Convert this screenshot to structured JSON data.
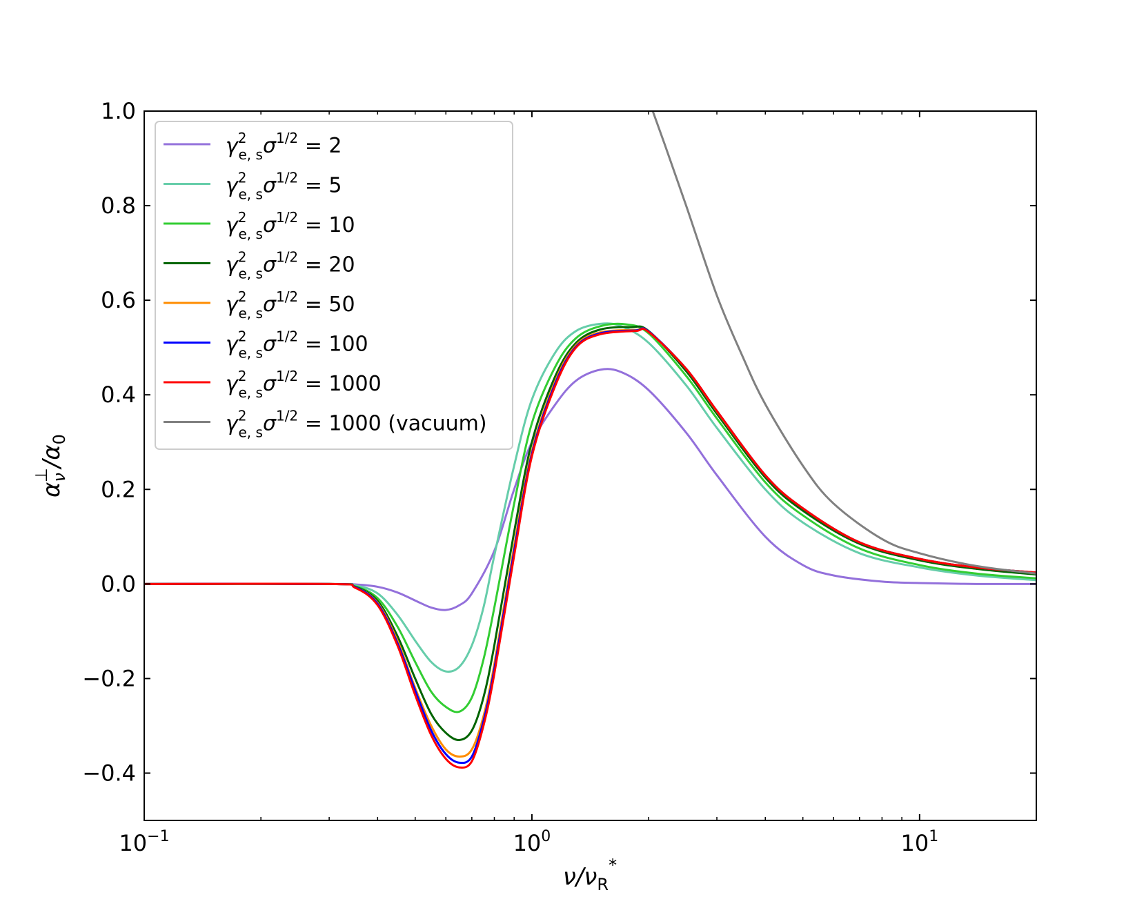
{
  "chart_data": {
    "type": "line",
    "title": "",
    "xlabel": {
      "base": "ν/ν",
      "sub": "R",
      "sup": "*"
    },
    "ylabel": {
      "base": "α",
      "sub": "ν",
      "sup": "⊥",
      "rest": "/α",
      "sub2": "0"
    },
    "xscale": "log",
    "xlim": [
      0.1,
      20
    ],
    "ylim": [
      -0.5,
      1.0
    ],
    "xticks": [
      {
        "value": 0.1,
        "base": "10",
        "exp": "−1"
      },
      {
        "value": 1,
        "base": "10",
        "exp": "0"
      },
      {
        "value": 10,
        "base": "10",
        "exp": "1"
      }
    ],
    "yticks": [
      {
        "value": -0.4,
        "label": "−0.4"
      },
      {
        "value": -0.2,
        "label": "−0.2"
      },
      {
        "value": 0.0,
        "label": "0.0"
      },
      {
        "value": 0.2,
        "label": "0.2"
      },
      {
        "value": 0.4,
        "label": "0.4"
      },
      {
        "value": 0.6,
        "label": "0.6"
      },
      {
        "value": 0.8,
        "label": "0.8"
      },
      {
        "value": 1.0,
        "label": "1.0"
      }
    ],
    "legend_position": "top-left",
    "legend_prefix": "γ",
    "legend_sub": "e, s",
    "legend_sup": "2",
    "legend_sigma": "σ",
    "legend_sigma_sup": "1/2",
    "legend_eq": " = ",
    "grid": false,
    "series": [
      {
        "name": "2",
        "color": "#9370DB",
        "x": [
          0.1,
          0.3,
          0.35,
          0.4,
          0.45,
          0.5,
          0.55,
          0.6,
          0.65,
          0.7,
          0.8,
          0.9,
          1.0,
          1.15,
          1.3,
          1.5,
          1.7,
          2.0,
          2.5,
          3.0,
          4.0,
          5.0,
          6.0,
          8.0,
          10.0,
          14.0,
          20.0
        ],
        "y": [
          0,
          0,
          -0.001,
          -0.006,
          -0.018,
          -0.035,
          -0.05,
          -0.055,
          -0.045,
          -0.02,
          0.07,
          0.2,
          0.3,
          0.38,
          0.43,
          0.453,
          0.448,
          0.41,
          0.32,
          0.23,
          0.1,
          0.04,
          0.018,
          0.005,
          0.002,
          0.0,
          0.0
        ]
      },
      {
        "name": "5",
        "color": "#66CDAA",
        "x": [
          0.1,
          0.3,
          0.35,
          0.4,
          0.45,
          0.5,
          0.55,
          0.6,
          0.65,
          0.7,
          0.75,
          0.8,
          0.9,
          1.0,
          1.15,
          1.3,
          1.5,
          1.7,
          2.0,
          2.5,
          3.0,
          4.0,
          5.0,
          7.0,
          10.0,
          14.0,
          20.0
        ],
        "y": [
          0,
          0,
          -0.003,
          -0.02,
          -0.065,
          -0.12,
          -0.165,
          -0.185,
          -0.175,
          -0.13,
          -0.05,
          0.06,
          0.25,
          0.39,
          0.49,
          0.535,
          0.55,
          0.545,
          0.51,
          0.42,
          0.33,
          0.2,
          0.13,
          0.065,
          0.035,
          0.018,
          0.008
        ]
      },
      {
        "name": "10",
        "color": "#32CD32",
        "x": [
          0.1,
          0.3,
          0.35,
          0.4,
          0.45,
          0.5,
          0.55,
          0.6,
          0.65,
          0.7,
          0.75,
          0.8,
          0.9,
          1.0,
          1.15,
          1.3,
          1.5,
          1.75,
          2.0,
          2.5,
          3.0,
          4.0,
          5.0,
          7.0,
          10.0,
          14.0,
          20.0
        ],
        "y": [
          0,
          0,
          -0.005,
          -0.03,
          -0.09,
          -0.165,
          -0.228,
          -0.26,
          -0.27,
          -0.24,
          -0.16,
          -0.05,
          0.17,
          0.34,
          0.46,
          0.52,
          0.545,
          0.549,
          0.53,
          0.44,
          0.35,
          0.215,
          0.145,
          0.075,
          0.04,
          0.022,
          0.012
        ]
      },
      {
        "name": "20",
        "color": "#006400",
        "x": [
          0.1,
          0.3,
          0.35,
          0.4,
          0.45,
          0.5,
          0.55,
          0.6,
          0.65,
          0.7,
          0.75,
          0.8,
          0.9,
          1.0,
          1.15,
          1.3,
          1.5,
          1.8,
          2.0,
          2.5,
          3.0,
          4.0,
          5.0,
          7.0,
          10.0,
          14.0,
          20.0
        ],
        "y": [
          0,
          0,
          -0.006,
          -0.036,
          -0.11,
          -0.2,
          -0.275,
          -0.315,
          -0.33,
          -0.31,
          -0.24,
          -0.13,
          0.11,
          0.3,
          0.44,
          0.51,
          0.538,
          0.543,
          0.535,
          0.45,
          0.36,
          0.225,
          0.155,
          0.085,
          0.05,
          0.032,
          0.02
        ]
      },
      {
        "name": "50",
        "color": "#FF8C00",
        "x": [
          0.1,
          0.3,
          0.35,
          0.4,
          0.45,
          0.5,
          0.55,
          0.6,
          0.65,
          0.7,
          0.75,
          0.8,
          0.9,
          1.0,
          1.15,
          1.3,
          1.5,
          1.85,
          2.0,
          2.5,
          3.0,
          4.0,
          5.0,
          7.0,
          10.0,
          14.0,
          20.0
        ],
        "y": [
          0,
          0,
          -0.007,
          -0.04,
          -0.12,
          -0.22,
          -0.3,
          -0.35,
          -0.365,
          -0.35,
          -0.28,
          -0.17,
          0.08,
          0.28,
          0.43,
          0.505,
          0.532,
          0.537,
          0.534,
          0.455,
          0.365,
          0.23,
          0.16,
          0.088,
          0.053,
          0.035,
          0.024
        ]
      },
      {
        "name": "100",
        "color": "#0000FF",
        "x": [
          0.1,
          0.3,
          0.35,
          0.4,
          0.45,
          0.5,
          0.55,
          0.6,
          0.65,
          0.7,
          0.75,
          0.8,
          0.9,
          1.0,
          1.15,
          1.3,
          1.5,
          1.85,
          2.0,
          2.5,
          3.0,
          4.0,
          5.0,
          7.0,
          10.0,
          14.0,
          20.0
        ],
        "y": [
          0,
          0,
          -0.007,
          -0.042,
          -0.125,
          -0.225,
          -0.31,
          -0.36,
          -0.378,
          -0.365,
          -0.29,
          -0.18,
          0.07,
          0.275,
          0.425,
          0.502,
          0.53,
          0.536,
          0.534,
          0.455,
          0.366,
          0.23,
          0.16,
          0.088,
          0.053,
          0.035,
          0.024
        ]
      },
      {
        "name": "1000",
        "color": "#FF0000",
        "x": [
          0.1,
          0.3,
          0.35,
          0.4,
          0.45,
          0.5,
          0.55,
          0.6,
          0.65,
          0.7,
          0.75,
          0.8,
          0.9,
          1.0,
          1.15,
          1.3,
          1.5,
          1.85,
          2.0,
          2.5,
          3.0,
          4.0,
          5.0,
          7.0,
          10.0,
          14.0,
          20.0
        ],
        "y": [
          0,
          0,
          -0.008,
          -0.045,
          -0.13,
          -0.235,
          -0.32,
          -0.37,
          -0.388,
          -0.375,
          -0.3,
          -0.19,
          0.06,
          0.27,
          0.42,
          0.5,
          0.528,
          0.535,
          0.533,
          0.455,
          0.366,
          0.23,
          0.16,
          0.088,
          0.053,
          0.035,
          0.024
        ]
      },
      {
        "name": "1000 (vacuum)",
        "color": "#808080",
        "x": [
          2.05,
          2.2,
          2.5,
          3.0,
          3.5,
          4.0,
          5.0,
          6.0,
          8.0,
          10.0,
          14.0,
          20.0
        ],
        "y": [
          1.0,
          0.93,
          0.8,
          0.61,
          0.48,
          0.38,
          0.25,
          0.17,
          0.095,
          0.065,
          0.038,
          0.022
        ]
      }
    ]
  }
}
